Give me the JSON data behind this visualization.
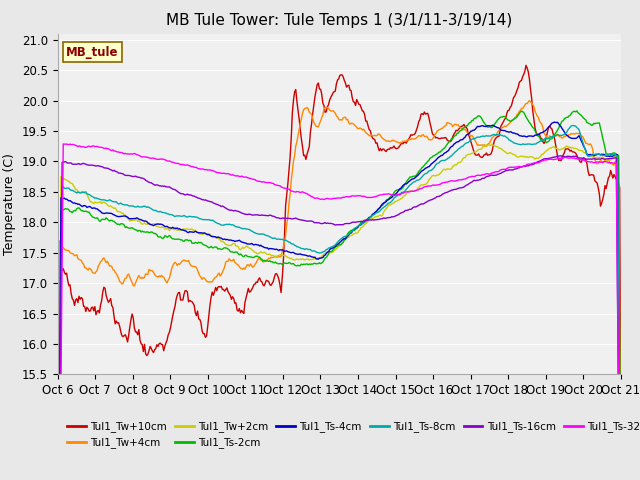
{
  "title": "MB Tule Tower: Tule Temps 1 (3/1/11-3/19/14)",
  "ylabel": "Temperature (C)",
  "ylim": [
    15.5,
    21.1
  ],
  "yticks": [
    15.5,
    16.0,
    16.5,
    17.0,
    17.5,
    18.0,
    18.5,
    19.0,
    19.5,
    20.0,
    20.5,
    21.0
  ],
  "xtick_labels": [
    "Oct 6",
    "Oct 7",
    "Oct 8",
    "Oct 9",
    "Oct 10",
    "Oct 11",
    "Oct 12",
    "Oct 13",
    "Oct 14",
    "Oct 15",
    "Oct 16",
    "Oct 17",
    "Oct 18",
    "Oct 19",
    "Oct 20",
    "Oct 21"
  ],
  "n_points": 500,
  "series": [
    {
      "label": "Tul1_Tw+10cm",
      "color": "#cc0000"
    },
    {
      "label": "Tul1_Tw+4cm",
      "color": "#ff8800"
    },
    {
      "label": "Tul1_Tw+2cm",
      "color": "#cccc00"
    },
    {
      "label": "Tul1_Ts-2cm",
      "color": "#00bb00"
    },
    {
      "label": "Tul1_Ts-4cm",
      "color": "#0000cc"
    },
    {
      "label": "Tul1_Ts-8cm",
      "color": "#00aaaa"
    },
    {
      "label": "Tul1_Ts-16cm",
      "color": "#8800cc"
    },
    {
      "label": "Tul1_Ts-32cm",
      "color": "#ff00ff"
    }
  ],
  "bg_color": "#e8e8e8",
  "plot_bg": "#f0f0f0",
  "legend_box_color": "#ffffcc",
  "legend_box_edge": "#886600",
  "legend_text_color": "#880000",
  "title_fontsize": 11,
  "axis_fontsize": 9,
  "tick_fontsize": 8.5
}
